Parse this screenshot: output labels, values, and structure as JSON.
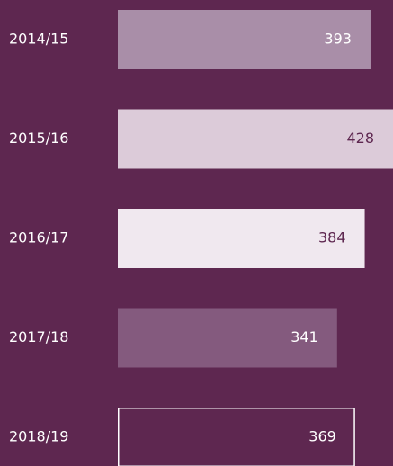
{
  "chart_data": {
    "type": "bar",
    "orientation": "horizontal",
    "categories": [
      "2014/15",
      "2015/16",
      "2016/17",
      "2017/18",
      "2018/19"
    ],
    "values": [
      393,
      428,
      384,
      341,
      369
    ],
    "colors": [
      "#a98ea8",
      "#dccbd9",
      "#f0e8ef",
      "#845a7e",
      "#5e2750"
    ],
    "label_colors": [
      "#ffffff",
      "#5e2750",
      "#5e2750",
      "#ffffff",
      "#ffffff"
    ],
    "outlined": [
      false,
      false,
      false,
      false,
      true
    ],
    "xlim": [
      0,
      428
    ]
  }
}
